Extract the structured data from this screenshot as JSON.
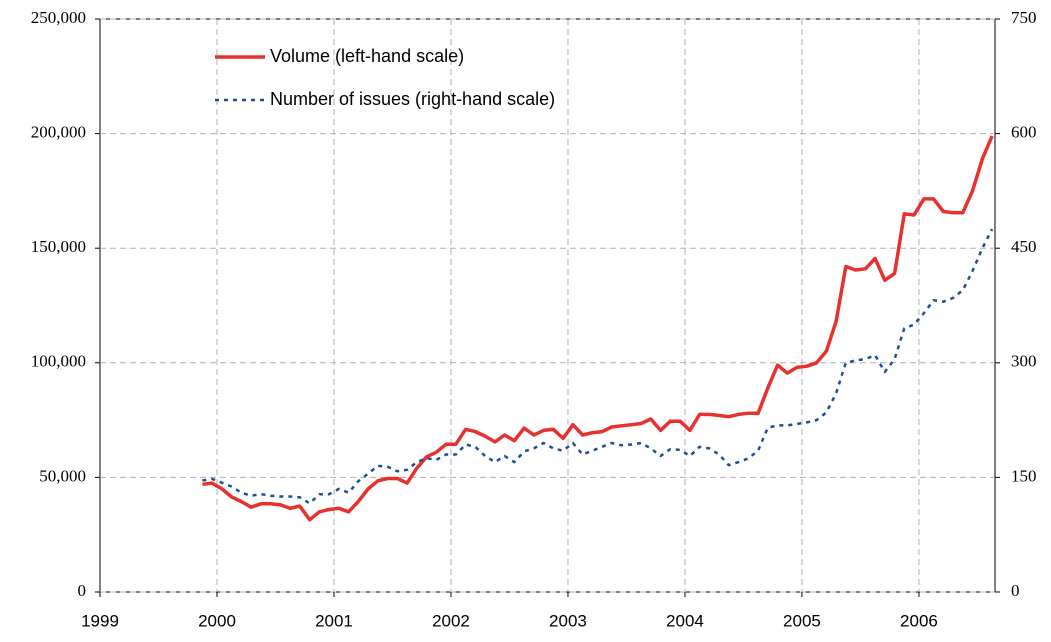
{
  "chart_data": {
    "type": "line",
    "x": [
      1999.875,
      1999.958,
      2000.042,
      2000.125,
      2000.208,
      2000.292,
      2000.375,
      2000.458,
      2000.542,
      2000.625,
      2000.708,
      2000.792,
      2000.875,
      2000.958,
      2001.042,
      2001.125,
      2001.208,
      2001.292,
      2001.375,
      2001.458,
      2001.542,
      2001.625,
      2001.708,
      2001.792,
      2001.875,
      2001.958,
      2002.042,
      2002.125,
      2002.208,
      2002.292,
      2002.375,
      2002.458,
      2002.542,
      2002.625,
      2002.708,
      2002.792,
      2002.875,
      2002.958,
      2003.042,
      2003.125,
      2003.208,
      2003.292,
      2003.375,
      2003.458,
      2003.542,
      2003.625,
      2003.708,
      2003.792,
      2003.875,
      2003.958,
      2004.042,
      2004.125,
      2004.208,
      2004.292,
      2004.375,
      2004.458,
      2004.542,
      2004.625,
      2004.708,
      2004.792,
      2004.875,
      2004.958,
      2005.042,
      2005.125,
      2005.208,
      2005.292,
      2005.375,
      2005.458,
      2005.542,
      2005.625,
      2005.708,
      2005.792,
      2005.875,
      2005.958,
      2006.042,
      2006.125,
      2006.208,
      2006.292,
      2006.375,
      2006.458,
      2006.542,
      2006.625
    ],
    "series": [
      {
        "name": "Volume (left-hand scale)",
        "color": "#e8312f",
        "style": "solid",
        "values": [
          47000,
          47500,
          45000,
          41500,
          39500,
          37000,
          38500,
          38500,
          38000,
          36500,
          37500,
          31500,
          35000,
          36000,
          36500,
          35000,
          39500,
          45000,
          48500,
          49500,
          49500,
          47500,
          54000,
          59000,
          61000,
          64500,
          64500,
          71000,
          70000,
          68000,
          65500,
          68500,
          66000,
          71500,
          68500,
          70500,
          71000,
          67000,
          73000,
          68500,
          69500,
          70000,
          72000,
          72500,
          73000,
          73500,
          75500,
          70500,
          74500,
          74500,
          70500,
          77500,
          77500,
          77000,
          76500,
          77500,
          78000,
          78000,
          89000,
          99000,
          95500,
          98000,
          98500,
          100000,
          105000,
          118000,
          142000,
          140500,
          141000,
          145500,
          136000,
          139000,
          165000,
          164500,
          171500,
          171500,
          166000,
          165500,
          165500,
          175000,
          189000,
          199000
        ]
      },
      {
        "name": "Number of issues (right-hand scale)",
        "color": "#1f4e96",
        "style": "dotted",
        "axis": "y2",
        "values": [
          146,
          148,
          143,
          138,
          130,
          126,
          128,
          126,
          125,
          125,
          124,
          116,
          128,
          128,
          135,
          130,
          145,
          155,
          165,
          164,
          158,
          160,
          170,
          175,
          173,
          180,
          180,
          193,
          190,
          178,
          170,
          178,
          170,
          184,
          188,
          195,
          188,
          185,
          195,
          180,
          185,
          190,
          195,
          192,
          193,
          195,
          188,
          178,
          187,
          186,
          178,
          190,
          188,
          180,
          166,
          170,
          175,
          185,
          215,
          218,
          218,
          220,
          222,
          225,
          235,
          260,
          300,
          303,
          305,
          310,
          288,
          305,
          345,
          350,
          365,
          382,
          380,
          385,
          395,
          420,
          450,
          475
        ]
      }
    ],
    "xlim": [
      1999,
      2006.65
    ],
    "xticks": [
      1999,
      2000,
      2001,
      2002,
      2003,
      2004,
      2005,
      2006
    ],
    "ylim": [
      0,
      250000
    ],
    "yticks": [
      0,
      {
        "value": 50000,
        "label": "50,000"
      },
      {
        "value": 100000,
        "label": "100,000"
      },
      {
        "value": 150000,
        "label": "150,000"
      },
      {
        "value": 200000,
        "label": "200,000"
      },
      {
        "value": 250000,
        "label": "250,000"
      }
    ],
    "y2lim": [
      0,
      750
    ],
    "y2ticks": [
      0,
      150,
      300,
      450,
      600,
      750
    ],
    "grid": true,
    "legend": "upper-left"
  }
}
